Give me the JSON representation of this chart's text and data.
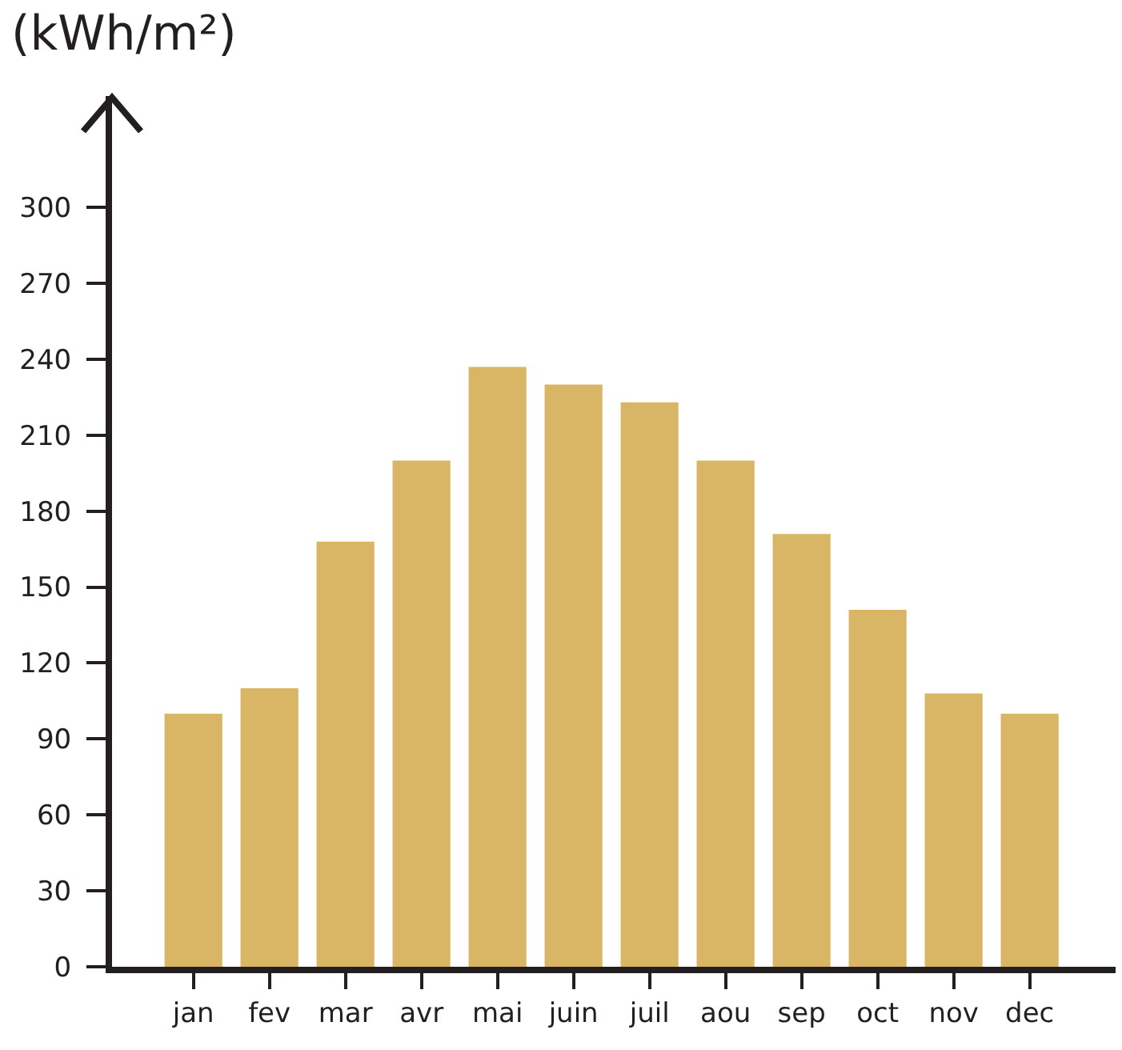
{
  "chart_data": {
    "type": "bar",
    "ylabel": "(kWh/m²)",
    "categories": [
      "jan",
      "fev",
      "mar",
      "avr",
      "mai",
      "juin",
      "juil",
      "aou",
      "sep",
      "oct",
      "nov",
      "dec"
    ],
    "values": [
      100,
      110,
      168,
      200,
      237,
      230,
      223,
      200,
      171,
      141,
      108,
      100
    ],
    "color": "#d9b665",
    "ylim": [
      0,
      344
    ],
    "yticks": [
      0,
      30,
      60,
      90,
      120,
      150,
      180,
      210,
      240,
      270,
      300
    ],
    "grid": false,
    "legend": false
  }
}
